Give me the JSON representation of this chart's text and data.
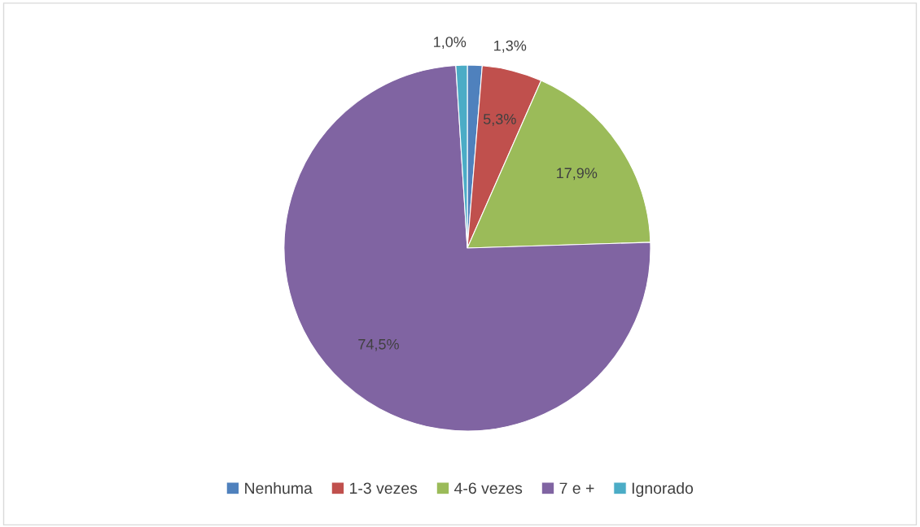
{
  "chart_data": {
    "type": "pie",
    "categories": [
      "Nenhuma",
      "1-3 vezes",
      "4-6 vezes",
      "7 e +",
      "Ignorado"
    ],
    "values": [
      1.3,
      5.3,
      17.9,
      74.5,
      1.0
    ],
    "colors": [
      "#4f81bd",
      "#c0504d",
      "#9bbb59",
      "#8064a2",
      "#4bacc6"
    ],
    "value_labels": [
      "1,3%",
      "5,3%",
      "17,9%",
      "74,5%",
      "1,0%"
    ],
    "legend": "bottom"
  }
}
